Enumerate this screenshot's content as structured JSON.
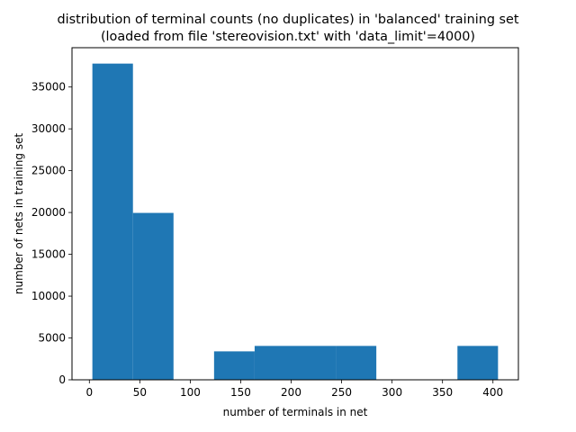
{
  "chart_data": {
    "type": "bar",
    "title_line1": "distribution of terminal counts (no duplicates) in 'balanced' training set",
    "title_line2": "(loaded from file 'stereovision.txt' with 'data_limit'=4000)",
    "xlabel": "number of terminals in net",
    "ylabel": "number of nets in training set",
    "xlim": [
      -17.2,
      425.2
    ],
    "ylim": [
      0,
      39700
    ],
    "xticks": [
      0,
      50,
      100,
      150,
      200,
      250,
      300,
      350,
      400
    ],
    "yticks": [
      0,
      5000,
      10000,
      15000,
      20000,
      25000,
      30000,
      35000
    ],
    "bins": [
      {
        "x0": 3,
        "x1": 43.2,
        "value": 37800
      },
      {
        "x0": 43.2,
        "x1": 83.4,
        "value": 19950
      },
      {
        "x0": 83.4,
        "x1": 123.6,
        "value": 0
      },
      {
        "x0": 123.6,
        "x1": 163.8,
        "value": 3400
      },
      {
        "x0": 163.8,
        "x1": 204,
        "value": 4050
      },
      {
        "x0": 204,
        "x1": 244.2,
        "value": 4050
      },
      {
        "x0": 244.2,
        "x1": 284.4,
        "value": 4050
      },
      {
        "x0": 284.4,
        "x1": 324.6,
        "value": 0
      },
      {
        "x0": 324.6,
        "x1": 364.8,
        "value": 0
      },
      {
        "x0": 364.8,
        "x1": 405,
        "value": 4050
      }
    ],
    "bar_color": "#1f77b4",
    "grid": false,
    "legend": "none"
  }
}
